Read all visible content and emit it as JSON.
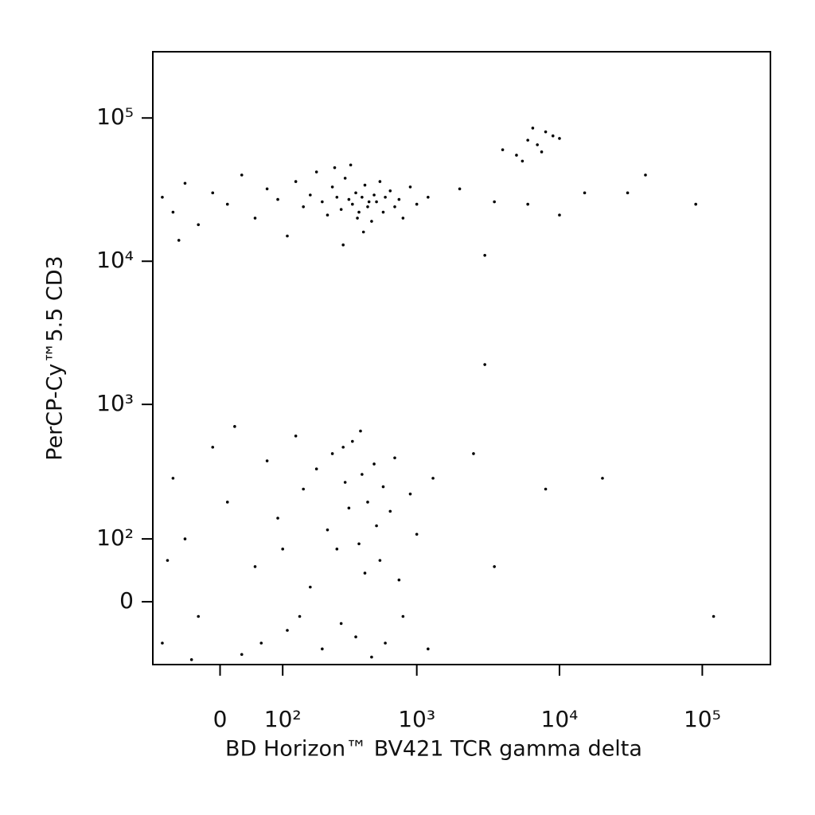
{
  "chart_data": {
    "type": "scatter",
    "x_label": "BD Horizon™ BV421 TCR gamma delta",
    "y_label": "PerCP-Cy™5.5 CD3",
    "xscale": "biexponential",
    "yscale": "biexponential",
    "color": "#000000",
    "xlim": [
      -110,
      300000
    ],
    "ylim": [
      -100,
      290000
    ],
    "xticks": [
      0,
      {
        "value": 100,
        "label": "10²"
      },
      {
        "value": 1000,
        "label": "10³"
      },
      {
        "value": 10000,
        "label": "10⁴"
      },
      {
        "value": 100000,
        "label": "10⁵"
      }
    ],
    "yticks": [
      0,
      {
        "value": 100,
        "label": "10²"
      },
      {
        "value": 1000,
        "label": "10³"
      },
      {
        "value": 10000,
        "label": "10⁴"
      },
      {
        "value": 100000,
        "label": "10⁵"
      }
    ],
    "x": [
      -90,
      -70,
      -50,
      -30,
      -10,
      10,
      30,
      50,
      70,
      90,
      110,
      130,
      150,
      170,
      190,
      210,
      230,
      250,
      270,
      290,
      310,
      330,
      350,
      370,
      390,
      410,
      430,
      450,
      480,
      500,
      520,
      550,
      580,
      600,
      650,
      700,
      750,
      800,
      900,
      1000,
      1200,
      260,
      340,
      420,
      300,
      380,
      460,
      -60,
      -90,
      -70,
      -50,
      -30,
      -10,
      10,
      30,
      50,
      70,
      90,
      110,
      130,
      150,
      170,
      190,
      210,
      230,
      250,
      270,
      290,
      310,
      330,
      350,
      370,
      390,
      410,
      430,
      450,
      480,
      500,
      520,
      550,
      580,
      600,
      650,
      700,
      750,
      800,
      900,
      1000,
      1200,
      1300,
      -80,
      -40,
      20,
      60,
      100,
      140,
      400,
      300,
      4000,
      5000,
      6000,
      7000,
      8000,
      9000,
      5500,
      6500,
      7500,
      10000,
      2000,
      3000,
      3500,
      6000,
      10000,
      15000,
      30000,
      40000,
      90000,
      3000,
      20000,
      8000,
      120000,
      2500,
      3500
    ],
    "values": [
      28000,
      22000,
      35000,
      18000,
      30000,
      25000,
      40000,
      20000,
      32000,
      27000,
      15000,
      36000,
      24000,
      29000,
      42000,
      26000,
      21000,
      33000,
      28000,
      23000,
      38000,
      27000,
      25000,
      30000,
      22000,
      28000,
      34000,
      24000,
      19000,
      29000,
      26000,
      36000,
      22000,
      28000,
      31000,
      24000,
      27000,
      20000,
      33000,
      25000,
      28000,
      45000,
      47000,
      16000,
      13000,
      20000,
      26000,
      14000,
      -60,
      300,
      100,
      -20,
      500,
      200,
      -80,
      50,
      400,
      150,
      -40,
      600,
      250,
      20,
      350,
      -70,
      120,
      450,
      80,
      -30,
      280,
      180,
      550,
      -50,
      90,
      320,
      40,
      200,
      -85,
      380,
      130,
      60,
      260,
      -60,
      170,
      420,
      30,
      -20,
      230,
      110,
      -70,
      300,
      60,
      -90,
      700,
      -60,
      80,
      -20,
      650,
      500,
      60000,
      55000,
      70000,
      65000,
      80000,
      75000,
      50000,
      85000,
      58000,
      72000,
      32000,
      11000,
      26000,
      25000,
      21000,
      30000,
      30000,
      40000,
      25000,
      1900,
      300,
      250,
      -20,
      450,
      50
    ]
  }
}
